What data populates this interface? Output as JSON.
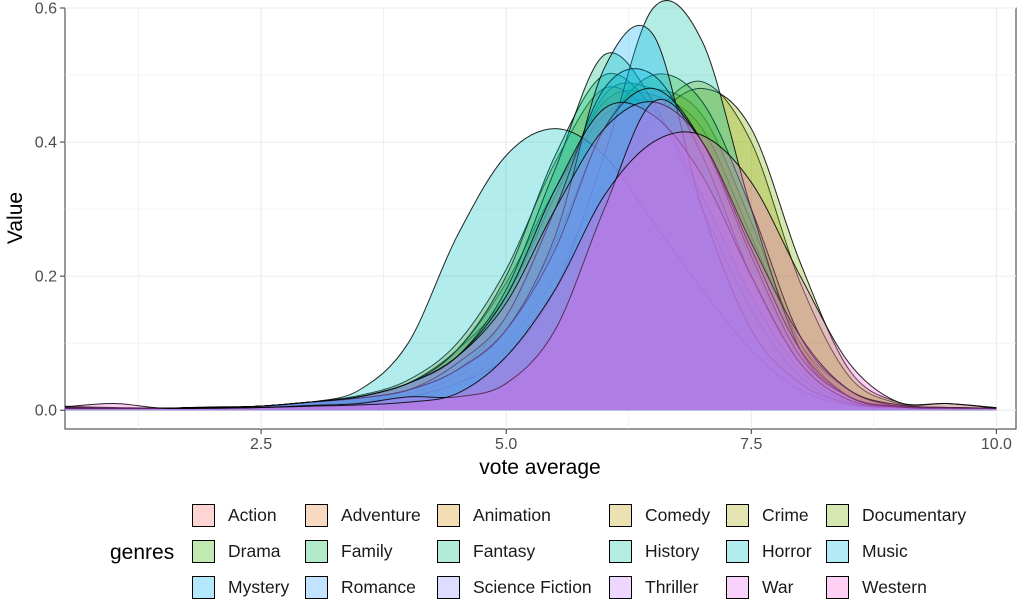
{
  "chart_data": {
    "type": "area",
    "subtype": "density",
    "xlabel": "vote average",
    "ylabel": "Value",
    "xlim": [
      0.5,
      10.2
    ],
    "ylim": [
      -0.028,
      0.6
    ],
    "x_ticks": [
      2.5,
      5.0,
      7.5,
      10.0
    ],
    "x_tick_labels": [
      "2.5",
      "5.0",
      "7.5",
      "10.0"
    ],
    "y_ticks": [
      0.0,
      0.2,
      0.4,
      0.6
    ],
    "y_tick_labels": [
      "0.0",
      "0.2",
      "0.4",
      "0.6"
    ],
    "grid": true,
    "legend": {
      "title": "genres",
      "position": "bottom",
      "columns": 6
    },
    "x": [
      0.5,
      1.0,
      1.5,
      2.0,
      2.5,
      3.0,
      3.5,
      4.0,
      4.5,
      5.0,
      5.5,
      6.0,
      6.5,
      7.0,
      7.5,
      8.0,
      8.5,
      9.0,
      9.5,
      10.0
    ],
    "series": [
      {
        "name": "Action",
        "color": "#F8766D",
        "values": [
          0.004,
          0.003,
          0.003,
          0.005,
          0.006,
          0.012,
          0.02,
          0.04,
          0.09,
          0.19,
          0.33,
          0.44,
          0.46,
          0.39,
          0.22,
          0.08,
          0.02,
          0.006,
          0.004,
          0.003
        ]
      },
      {
        "name": "Adventure",
        "color": "#EA8331",
        "values": [
          0.006,
          0.004,
          0.003,
          0.004,
          0.006,
          0.012,
          0.02,
          0.04,
          0.09,
          0.17,
          0.32,
          0.46,
          0.47,
          0.42,
          0.26,
          0.1,
          0.03,
          0.008,
          0.004,
          0.003
        ]
      },
      {
        "name": "Animation",
        "color": "#D89000",
        "values": [
          0.003,
          0.003,
          0.003,
          0.004,
          0.006,
          0.012,
          0.018,
          0.03,
          0.06,
          0.14,
          0.3,
          0.47,
          0.48,
          0.44,
          0.28,
          0.1,
          0.02,
          0.005,
          0.003,
          0.003
        ]
      },
      {
        "name": "Comedy",
        "color": "#C09B00",
        "values": [
          0.004,
          0.003,
          0.003,
          0.004,
          0.006,
          0.012,
          0.022,
          0.045,
          0.1,
          0.21,
          0.37,
          0.48,
          0.44,
          0.35,
          0.2,
          0.07,
          0.015,
          0.004,
          0.003,
          0.003
        ]
      },
      {
        "name": "Crime",
        "color": "#A3A500",
        "values": [
          0.003,
          0.003,
          0.003,
          0.004,
          0.005,
          0.01,
          0.015,
          0.025,
          0.05,
          0.1,
          0.2,
          0.34,
          0.44,
          0.49,
          0.4,
          0.19,
          0.05,
          0.01,
          0.004,
          0.003
        ]
      },
      {
        "name": "Documentary",
        "color": "#7CAE00",
        "values": [
          0.004,
          0.003,
          0.003,
          0.004,
          0.006,
          0.012,
          0.015,
          0.02,
          0.04,
          0.09,
          0.18,
          0.31,
          0.43,
          0.48,
          0.42,
          0.22,
          0.06,
          0.012,
          0.01,
          0.004
        ]
      },
      {
        "name": "Drama",
        "color": "#39B600",
        "values": [
          0.003,
          0.003,
          0.003,
          0.004,
          0.006,
          0.012,
          0.018,
          0.03,
          0.06,
          0.12,
          0.25,
          0.42,
          0.5,
          0.46,
          0.3,
          0.11,
          0.03,
          0.006,
          0.004,
          0.003
        ]
      },
      {
        "name": "Family",
        "color": "#00BB4E",
        "values": [
          0.003,
          0.003,
          0.003,
          0.004,
          0.006,
          0.012,
          0.02,
          0.04,
          0.09,
          0.2,
          0.38,
          0.5,
          0.45,
          0.32,
          0.17,
          0.06,
          0.012,
          0.004,
          0.003,
          0.003
        ]
      },
      {
        "name": "Fantasy",
        "color": "#00BF7D",
        "values": [
          0.003,
          0.003,
          0.003,
          0.004,
          0.006,
          0.012,
          0.02,
          0.04,
          0.08,
          0.18,
          0.36,
          0.53,
          0.46,
          0.3,
          0.15,
          0.05,
          0.01,
          0.004,
          0.003,
          0.003
        ]
      },
      {
        "name": "History",
        "color": "#00C1A3",
        "values": [
          0.003,
          0.003,
          0.003,
          0.003,
          0.004,
          0.008,
          0.012,
          0.02,
          0.04,
          0.08,
          0.18,
          0.38,
          0.6,
          0.55,
          0.3,
          0.09,
          0.02,
          0.006,
          0.004,
          0.003
        ]
      },
      {
        "name": "Horror",
        "color": "#00BFC4",
        "values": [
          0.004,
          0.003,
          0.003,
          0.004,
          0.006,
          0.012,
          0.03,
          0.1,
          0.26,
          0.38,
          0.42,
          0.38,
          0.28,
          0.18,
          0.09,
          0.03,
          0.008,
          0.004,
          0.003,
          0.003
        ]
      },
      {
        "name": "Music",
        "color": "#00BAE0",
        "values": [
          0.003,
          0.003,
          0.003,
          0.004,
          0.006,
          0.012,
          0.018,
          0.03,
          0.07,
          0.14,
          0.3,
          0.48,
          0.5,
          0.38,
          0.2,
          0.07,
          0.015,
          0.004,
          0.003,
          0.003
        ]
      },
      {
        "name": "Mystery",
        "color": "#00B0F6",
        "values": [
          0.003,
          0.003,
          0.003,
          0.004,
          0.006,
          0.012,
          0.018,
          0.03,
          0.06,
          0.12,
          0.26,
          0.51,
          0.56,
          0.3,
          0.12,
          0.04,
          0.01,
          0.004,
          0.003,
          0.003
        ]
      },
      {
        "name": "Romance",
        "color": "#35A2FF",
        "values": [
          0.003,
          0.003,
          0.003,
          0.004,
          0.006,
          0.012,
          0.018,
          0.03,
          0.06,
          0.12,
          0.24,
          0.42,
          0.48,
          0.4,
          0.23,
          0.08,
          0.02,
          0.005,
          0.003,
          0.003
        ]
      },
      {
        "name": "Science Fiction",
        "color": "#9590FF",
        "values": [
          0.003,
          0.003,
          0.003,
          0.004,
          0.006,
          0.012,
          0.02,
          0.04,
          0.08,
          0.17,
          0.33,
          0.45,
          0.44,
          0.35,
          0.2,
          0.07,
          0.015,
          0.005,
          0.004,
          0.003
        ]
      },
      {
        "name": "Thriller",
        "color": "#C77CFF",
        "values": [
          0.003,
          0.003,
          0.003,
          0.004,
          0.006,
          0.012,
          0.02,
          0.04,
          0.08,
          0.16,
          0.3,
          0.42,
          0.46,
          0.4,
          0.24,
          0.09,
          0.02,
          0.005,
          0.003,
          0.003
        ]
      },
      {
        "name": "War",
        "color": "#E76BF3",
        "values": [
          0.003,
          0.003,
          0.003,
          0.003,
          0.004,
          0.007,
          0.01,
          0.02,
          0.02,
          0.04,
          0.12,
          0.3,
          0.46,
          0.4,
          0.25,
          0.11,
          0.03,
          0.008,
          0.004,
          0.003
        ]
      },
      {
        "name": "Western",
        "color": "#FA62DB",
        "values": [
          0.005,
          0.01,
          0.003,
          0.003,
          0.004,
          0.006,
          0.008,
          0.012,
          0.025,
          0.08,
          0.18,
          0.32,
          0.4,
          0.41,
          0.34,
          0.2,
          0.07,
          0.012,
          0.01,
          0.003
        ]
      }
    ]
  }
}
